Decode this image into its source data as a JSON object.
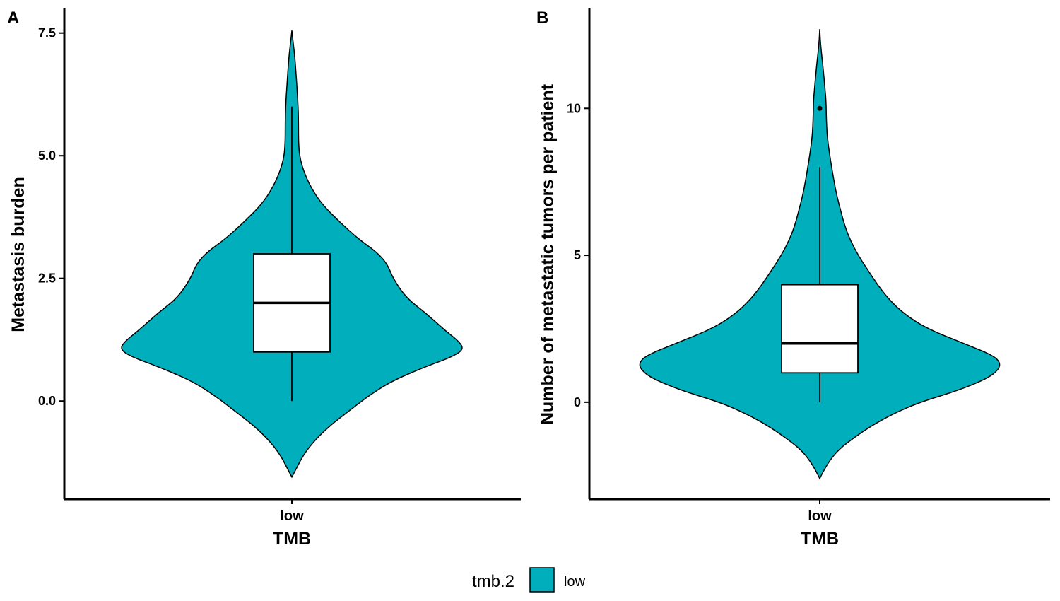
{
  "chart_data": [
    {
      "type": "violin",
      "panel": "A",
      "xlabel": "TMB",
      "ylabel": "Metastasis burden",
      "categories": [
        "low"
      ],
      "yticks": [
        "0.0",
        "2.5",
        "5.0",
        "7.5"
      ],
      "ytick_values": [
        0,
        2.5,
        5,
        7.5
      ],
      "ylim": [
        -2.0,
        8.0
      ],
      "violin_range": [
        -1.55,
        7.55
      ],
      "violin_profile": [
        [
          -1.55,
          0.0
        ],
        [
          -1.4,
          0.02
        ],
        [
          -1.1,
          0.06
        ],
        [
          -0.8,
          0.12
        ],
        [
          -0.5,
          0.2
        ],
        [
          -0.2,
          0.3
        ],
        [
          0.1,
          0.4
        ],
        [
          0.4,
          0.52
        ],
        [
          0.7,
          0.7
        ],
        [
          0.9,
          0.84
        ],
        [
          1.05,
          0.9
        ],
        [
          1.2,
          0.88
        ],
        [
          1.45,
          0.8
        ],
        [
          1.8,
          0.7
        ],
        [
          2.1,
          0.6
        ],
        [
          2.5,
          0.53
        ],
        [
          2.8,
          0.5
        ],
        [
          3.05,
          0.44
        ],
        [
          3.3,
          0.35
        ],
        [
          3.65,
          0.25
        ],
        [
          4.0,
          0.16
        ],
        [
          4.35,
          0.1
        ],
        [
          4.7,
          0.06
        ],
        [
          5.0,
          0.04
        ],
        [
          5.3,
          0.035
        ],
        [
          5.6,
          0.035
        ],
        [
          6.0,
          0.033
        ],
        [
          6.5,
          0.025
        ],
        [
          7.0,
          0.016
        ],
        [
          7.3,
          0.007
        ],
        [
          7.55,
          0.0
        ]
      ],
      "box": {
        "whisker_low": 0,
        "q1": 1,
        "median": 2,
        "q3": 3,
        "whisker_high": 6
      },
      "outliers": []
    },
    {
      "type": "violin",
      "panel": "B",
      "xlabel": "TMB",
      "ylabel": "Number of metastatic tumors per patient",
      "categories": [
        "low"
      ],
      "yticks": [
        "0",
        "5",
        "10"
      ],
      "ytick_values": [
        0,
        5,
        10
      ],
      "ylim": [
        -3.3,
        13.4
      ],
      "violin_range": [
        -2.6,
        12.7
      ],
      "violin_profile": [
        [
          -2.6,
          0.0
        ],
        [
          -2.4,
          0.015
        ],
        [
          -2.0,
          0.05
        ],
        [
          -1.6,
          0.1
        ],
        [
          -1.2,
          0.18
        ],
        [
          -0.8,
          0.27
        ],
        [
          -0.4,
          0.38
        ],
        [
          0.0,
          0.52
        ],
        [
          0.4,
          0.72
        ],
        [
          0.8,
          0.87
        ],
        [
          1.1,
          0.93
        ],
        [
          1.35,
          0.94
        ],
        [
          1.6,
          0.9
        ],
        [
          2.0,
          0.75
        ],
        [
          2.5,
          0.56
        ],
        [
          3.0,
          0.44
        ],
        [
          3.5,
          0.36
        ],
        [
          4.0,
          0.3
        ],
        [
          4.5,
          0.25
        ],
        [
          5.0,
          0.2
        ],
        [
          5.5,
          0.16
        ],
        [
          6.0,
          0.13
        ],
        [
          6.5,
          0.11
        ],
        [
          7.0,
          0.09
        ],
        [
          7.5,
          0.075
        ],
        [
          8.0,
          0.062
        ],
        [
          8.5,
          0.05
        ],
        [
          9.0,
          0.04
        ],
        [
          9.4,
          0.036
        ],
        [
          9.8,
          0.034
        ],
        [
          10.2,
          0.033
        ],
        [
          10.7,
          0.027
        ],
        [
          11.2,
          0.02
        ],
        [
          11.7,
          0.012
        ],
        [
          12.2,
          0.004
        ],
        [
          12.7,
          0.0
        ]
      ],
      "box": {
        "whisker_low": 0,
        "q1": 1,
        "median": 2,
        "q3": 4,
        "whisker_high": 8
      },
      "outliers": [
        10
      ]
    }
  ],
  "legend": {
    "title": "tmb.2",
    "items": [
      {
        "label": "low",
        "color": "#00AFBB"
      }
    ],
    "position": "bottom"
  },
  "colors": {
    "violin_fill": "#00AFBB",
    "box_fill": "#ffffff",
    "line": "#000000"
  }
}
